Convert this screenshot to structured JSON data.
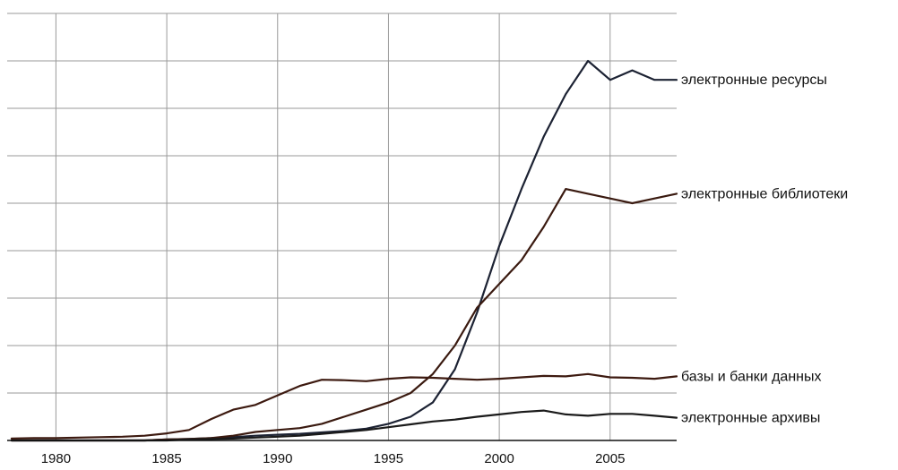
{
  "chart_data": {
    "type": "line",
    "title": "",
    "xlabel": "",
    "ylabel": "",
    "xlim": [
      1977.8,
      2008
    ],
    "ylim": [
      0,
      9
    ],
    "grid": true,
    "x_ticks": [
      1980,
      1985,
      1990,
      1995,
      2000,
      2005
    ],
    "x_tick_labels": [
      "1980",
      "1985",
      "1990",
      "1995",
      "2000",
      "2005"
    ],
    "y_gridlines": [
      1,
      2,
      3,
      4,
      5,
      6,
      7,
      8,
      9
    ],
    "legend": "direct labels at right end of lines",
    "x": [
      1978,
      1979,
      1980,
      1981,
      1982,
      1983,
      1984,
      1985,
      1986,
      1987,
      1988,
      1989,
      1990,
      1991,
      1992,
      1993,
      1994,
      1995,
      1996,
      1997,
      1998,
      1999,
      2000,
      2001,
      2002,
      2003,
      2004,
      2005,
      2006,
      2007,
      2008
    ],
    "series": [
      {
        "name": "электронные ресурсы",
        "color": "#1c2233",
        "values": [
          0,
          0,
          0,
          0,
          0,
          0,
          0,
          0.02,
          0.03,
          0.05,
          0.07,
          0.1,
          0.12,
          0.14,
          0.17,
          0.2,
          0.25,
          0.35,
          0.5,
          0.8,
          1.5,
          2.7,
          4.1,
          5.3,
          6.4,
          7.3,
          8.0,
          7.6,
          7.8,
          7.6,
          7.6
        ]
      },
      {
        "name": "электронные библиотеки",
        "color": "#3a1a10",
        "values": [
          0,
          0,
          0,
          0,
          0,
          0,
          0,
          0.02,
          0.03,
          0.05,
          0.1,
          0.18,
          0.22,
          0.26,
          0.35,
          0.5,
          0.65,
          0.8,
          1.0,
          1.4,
          2.0,
          2.8,
          3.3,
          3.8,
          4.5,
          5.3,
          5.2,
          5.1,
          5.0,
          5.1,
          5.2
        ]
      },
      {
        "name": "базы и банки данных",
        "color": "#3d1a10",
        "values": [
          0.04,
          0.05,
          0.05,
          0.06,
          0.07,
          0.08,
          0.1,
          0.15,
          0.22,
          0.45,
          0.65,
          0.75,
          0.95,
          1.15,
          1.28,
          1.27,
          1.25,
          1.3,
          1.33,
          1.32,
          1.3,
          1.28,
          1.3,
          1.33,
          1.36,
          1.35,
          1.4,
          1.33,
          1.32,
          1.3,
          1.35
        ]
      },
      {
        "name": "электронные архивы",
        "color": "#1a1a1a",
        "values": [
          0,
          0,
          0,
          0,
          0,
          0,
          0,
          0,
          0.02,
          0.03,
          0.04,
          0.06,
          0.08,
          0.1,
          0.14,
          0.18,
          0.22,
          0.28,
          0.34,
          0.4,
          0.44,
          0.5,
          0.55,
          0.6,
          0.63,
          0.55,
          0.52,
          0.56,
          0.56,
          0.52,
          0.48
        ]
      }
    ]
  }
}
